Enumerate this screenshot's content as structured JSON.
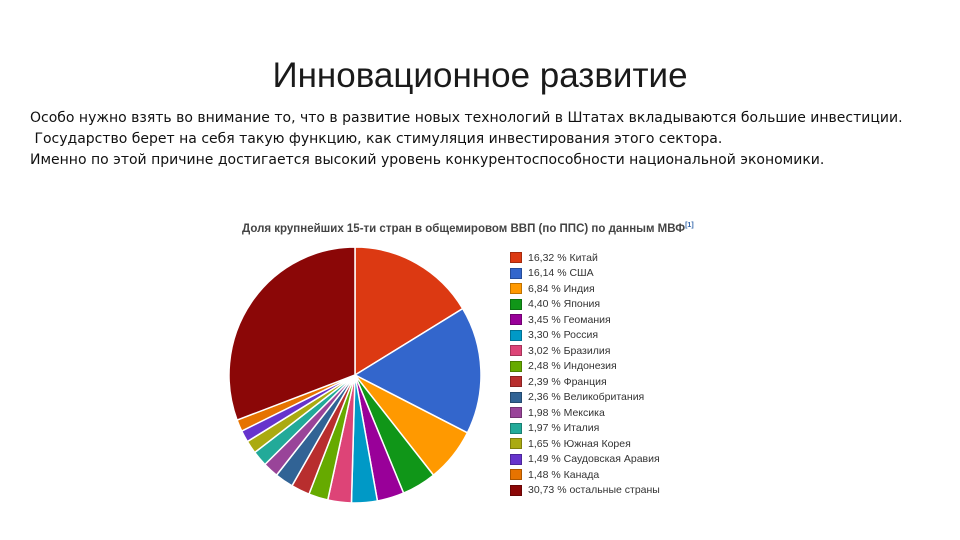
{
  "slide": {
    "title": "Инновационное развитие",
    "lines": [
      "Особо нужно взять во внимание то, что в развитие новых технологий в Штатах вкладываются большие инвестиции.",
      " Государство берет на себя такую функцию, как стимуляция инвестирования этого сектора.",
      "Именно по этой причине достигается высокий уровень конкурентоспособности национальной экономики."
    ]
  },
  "chart_data": {
    "type": "pie",
    "title": "Доля крупнейших 15-ти стран в общемировом ВВП (по ППС) по данным МВФ",
    "title_ref": "[1]",
    "legend_position": "right",
    "slices": [
      {
        "label": "16,32 % Китай",
        "value": 16.32,
        "color": "#dc3912"
      },
      {
        "label": "16,14 % США",
        "value": 16.14,
        "color": "#3366cc"
      },
      {
        "label": "6,84 % Индия",
        "value": 6.84,
        "color": "#ff9900"
      },
      {
        "label": "4,40 % Япония",
        "value": 4.4,
        "color": "#109618"
      },
      {
        "label": "3,45 % Геомания",
        "value": 3.45,
        "color": "#990099"
      },
      {
        "label": "3,30 % Россия",
        "value": 3.3,
        "color": "#0099c6"
      },
      {
        "label": "3,02 % Бразилия",
        "value": 3.02,
        "color": "#dd4477"
      },
      {
        "label": "2,48 % Индонезия",
        "value": 2.48,
        "color": "#66aa00"
      },
      {
        "label": "2,39 % Франция",
        "value": 2.39,
        "color": "#b82e2e"
      },
      {
        "label": "2,36 % Великобритания",
        "value": 2.36,
        "color": "#316395"
      },
      {
        "label": "1,98 % Мексика",
        "value": 1.98,
        "color": "#994499"
      },
      {
        "label": "1,97 % Италия",
        "value": 1.97,
        "color": "#22aa99"
      },
      {
        "label": "1,65 % Южная Корея",
        "value": 1.65,
        "color": "#aaaa11"
      },
      {
        "label": "1,49 % Саудовская Аравия",
        "value": 1.49,
        "color": "#6633cc"
      },
      {
        "label": "1,48 % Канада",
        "value": 1.48,
        "color": "#e67300"
      },
      {
        "label": "30,73 % остальные страны",
        "value": 30.73,
        "color": "#8b0707"
      }
    ]
  }
}
